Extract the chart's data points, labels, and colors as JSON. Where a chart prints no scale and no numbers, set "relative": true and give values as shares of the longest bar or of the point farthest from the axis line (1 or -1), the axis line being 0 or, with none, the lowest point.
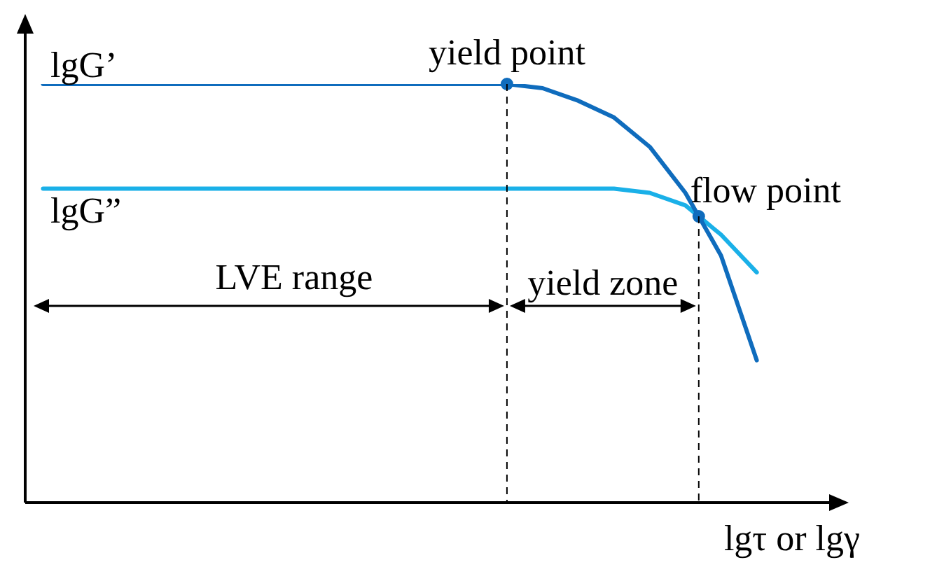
{
  "chart_data": {
    "type": "line",
    "relative": true,
    "xlabel": "lgτ or lgγ",
    "categories": [
      null,
      null,
      null,
      null,
      null,
      null,
      null,
      null,
      null,
      null,
      null,
      null,
      null,
      null,
      null,
      null,
      null,
      null,
      null,
      null,
      null,
      null,
      null
    ],
    "series": [
      {
        "name": "lgG’",
        "color": "#0f6cbd",
        "values": [
          1,
          1,
          1,
          1,
          1,
          1,
          1,
          1,
          1,
          1,
          1,
          1,
          1,
          1,
          0.99,
          0.96,
          0.92,
          0.85,
          0.74,
          0.59,
          0.34,
          null,
          null
        ]
      },
      {
        "name": "lgG”",
        "color": "#1ab0e8",
        "values": [
          0.75,
          0.75,
          0.75,
          0.75,
          0.75,
          0.75,
          0.75,
          0.75,
          0.75,
          0.75,
          0.75,
          0.75,
          0.75,
          0.75,
          0.75,
          0.75,
          0.75,
          0.74,
          0.71,
          0.64,
          0.55,
          null,
          null
        ]
      }
    ],
    "annotations": [
      "yield point",
      "flow point",
      "LVE range",
      "yield zone"
    ],
    "line_style": "solid"
  }
}
